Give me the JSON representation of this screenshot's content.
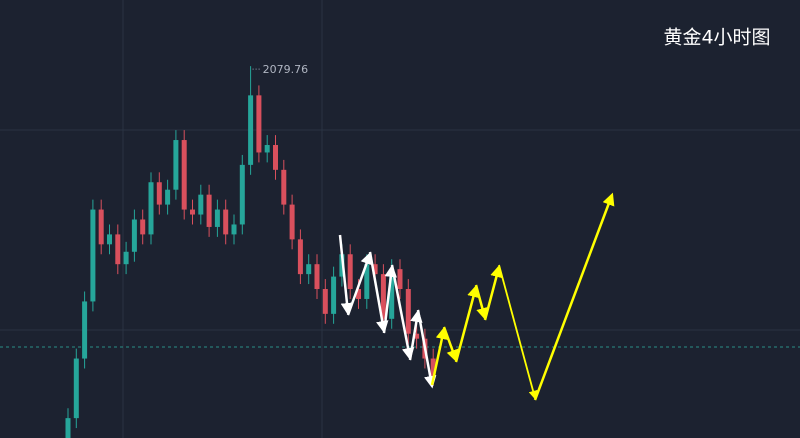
{
  "chart_data": {
    "type": "candlestick",
    "title": "黄金4小时图",
    "open": [
      1930,
      1938,
      1962,
      1985,
      2022,
      2008,
      2012,
      2000,
      2005,
      2018,
      2012,
      2033,
      2024,
      2030,
      2050,
      2022,
      2020,
      2028,
      2015,
      2022,
      2012,
      2016,
      2040,
      2068,
      2045,
      2048,
      2038,
      2024,
      2010,
      1996,
      2000,
      1990,
      1980,
      1995,
      2004,
      1990,
      1986,
      2000,
      1996,
      1978,
      1998,
      1990,
      1972,
      1970,
      1962
    ],
    "high": [
      1942,
      1966,
      1989,
      2026,
      2026,
      2016,
      2016,
      2009,
      2022,
      2022,
      2037,
      2037,
      2034,
      2054,
      2054,
      2026,
      2032,
      2032,
      2026,
      2026,
      2020,
      2044,
      2079.76,
      2072,
      2052,
      2052,
      2042,
      2028,
      2014,
      2004,
      2004,
      1994,
      1999,
      2008,
      2008,
      1994,
      2004,
      2004,
      2000,
      2002,
      2002,
      1994,
      1976,
      1974,
      1966
    ],
    "low": [
      1926,
      1934,
      1958,
      1981,
      2004,
      2004,
      1996,
      1996,
      2001,
      2008,
      2008,
      2020,
      2020,
      2026,
      2018,
      2016,
      2016,
      2011,
      2011,
      2008,
      2008,
      2012,
      2036,
      2041,
      2041,
      2034,
      2020,
      2006,
      1992,
      1992,
      1986,
      1976,
      1976,
      1991,
      1986,
      1982,
      1982,
      1992,
      1974,
      1974,
      1986,
      1968,
      1966,
      1958,
      1951
    ],
    "close": [
      1938,
      1962,
      1985,
      2022,
      2008,
      2012,
      2000,
      2005,
      2018,
      2012,
      2033,
      2024,
      2030,
      2050,
      2022,
      2020,
      2028,
      2015,
      2022,
      2012,
      2016,
      2040,
      2068,
      2045,
      2048,
      2038,
      2024,
      2010,
      1996,
      2000,
      1990,
      1980,
      1995,
      2004,
      1990,
      1986,
      2000,
      1996,
      1978,
      1998,
      1990,
      1972,
      1970,
      1962,
      1955
    ],
    "ylim": [
      1930,
      2106.4
    ],
    "up_color": "#26a69a",
    "down_color": "#d9505d"
  }
}
